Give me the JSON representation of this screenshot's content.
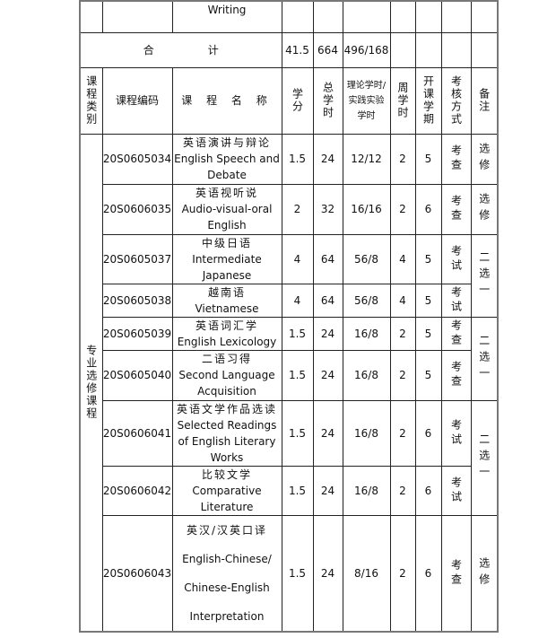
{
  "prev_row": {
    "name": "Writing"
  },
  "total": {
    "label_a": "合",
    "label_b": "计",
    "credits": "41.5",
    "hours": "664",
    "theory_practice": "496/168"
  },
  "header": {
    "category": "课程类别",
    "code": "课程编码",
    "name": "课 程 名 称",
    "credits": "学分",
    "hours": "总学时",
    "theory_practice": "理论学时/实践实验学时",
    "weekly": "周学时",
    "semester": "开课学期",
    "exam": "考核方式",
    "remark": "备注"
  },
  "category": "专业选修课程",
  "rows": [
    {
      "code": "20S0605034",
      "zh": "英语演讲与辩论",
      "en": [
        "English Speech and",
        "Debate"
      ],
      "credits": "1.5",
      "hours": "24",
      "tp": "12/12",
      "weekly": "2",
      "semester": "5",
      "exam": "考查",
      "remark": "选修"
    },
    {
      "code": "20S0606035",
      "zh": "英语视听说",
      "en": [
        "Audio-visual-oral",
        "English"
      ],
      "credits": "2",
      "hours": "32",
      "tp": "16/16",
      "weekly": "2",
      "semester": "6",
      "exam": "考查",
      "remark": "选修"
    },
    {
      "code": "20S0605037",
      "zh": "中级日语",
      "en": [
        "Intermediate",
        "Japanese"
      ],
      "credits": "4",
      "hours": "64",
      "tp": "56/8",
      "weekly": "4",
      "semester": "5",
      "exam": "考试",
      "remark": "二选一"
    },
    {
      "code": "20S0605038",
      "zh": "越南语",
      "en": [
        "Vietnamese"
      ],
      "credits": "4",
      "hours": "64",
      "tp": "56/8",
      "weekly": "4",
      "semester": "5",
      "exam": "考试"
    },
    {
      "code": "20S0605039",
      "zh": "英语词汇学",
      "en": [
        "English Lexicology"
      ],
      "credits": "1.5",
      "hours": "24",
      "tp": "16/8",
      "weekly": "2",
      "semester": "5",
      "exam": "考查",
      "remark": "二选一"
    },
    {
      "code": "20S0605040",
      "zh": "二语习得",
      "en": [
        "Second Language",
        "Acquisition"
      ],
      "credits": "1.5",
      "hours": "24",
      "tp": "16/8",
      "weekly": "2",
      "semester": "5",
      "exam": "考查"
    },
    {
      "code": "20S0606041",
      "zh": "英语文学作品选读",
      "en": [
        "Selected Readings",
        "of English Literary",
        "Works"
      ],
      "credits": "1.5",
      "hours": "24",
      "tp": "16/8",
      "weekly": "2",
      "semester": "6",
      "exam": "考试",
      "remark": "二选一"
    },
    {
      "code": "20S0606042",
      "zh": "比较文学",
      "en": [
        "Comparative",
        "Literature"
      ],
      "credits": "1.5",
      "hours": "24",
      "tp": "16/8",
      "weekly": "2",
      "semester": "6",
      "exam": "考试"
    },
    {
      "code": "20S0606043",
      "zh": "英汉/汉英口译",
      "en": [
        "English-Chinese/",
        "Chinese-English",
        "Interpretation"
      ],
      "credits": "1.5",
      "hours": "24",
      "tp": "8/16",
      "weekly": "2",
      "semester": "6",
      "exam": "考查",
      "remark": "选修"
    }
  ]
}
